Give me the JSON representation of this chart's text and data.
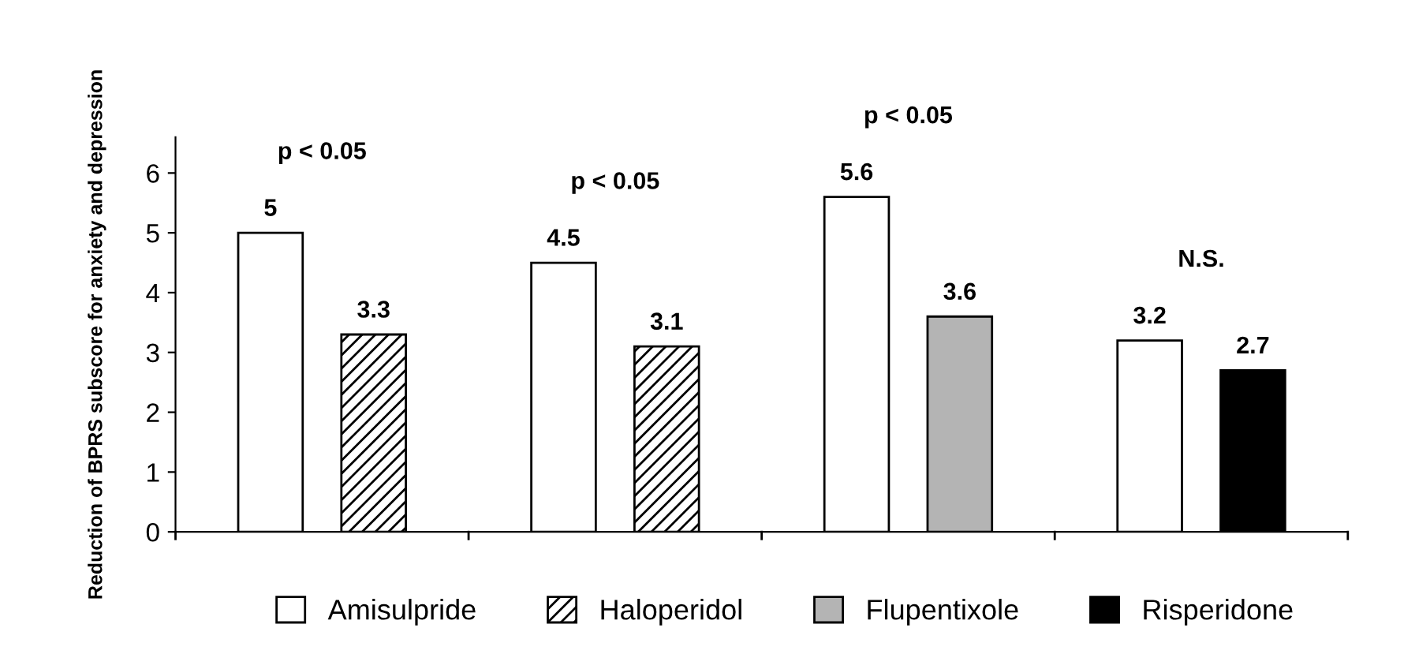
{
  "chart_data": {
    "type": "bar",
    "ylabel": "Reduction of BPRS subscore for anxiety and depression",
    "categories": [
      null,
      null,
      null,
      null
    ],
    "series": [
      {
        "name": "Amisulpride",
        "color": "#ffffff",
        "values": [
          5,
          4.5,
          5.6,
          3.2
        ]
      },
      {
        "name": "Haloperidol",
        "color": "#000000",
        "values": [
          3.3,
          3.1,
          null,
          null
        ]
      },
      {
        "name": "Flupentixole",
        "color": "#b4b4b4",
        "values": [
          null,
          null,
          3.6,
          null
        ]
      },
      {
        "name": "Risperidone",
        "color": "#000000",
        "values": [
          null,
          null,
          null,
          2.7
        ]
      }
    ],
    "annotations": [
      "p < 0.05",
      "p < 0.05",
      "p < 0.05",
      "N.S."
    ],
    "ylim": [
      0,
      6.6
    ],
    "yticks": [
      0,
      1,
      2,
      3,
      4,
      5,
      6
    ],
    "data_labels": true,
    "grid": false,
    "legend": "bottom"
  }
}
